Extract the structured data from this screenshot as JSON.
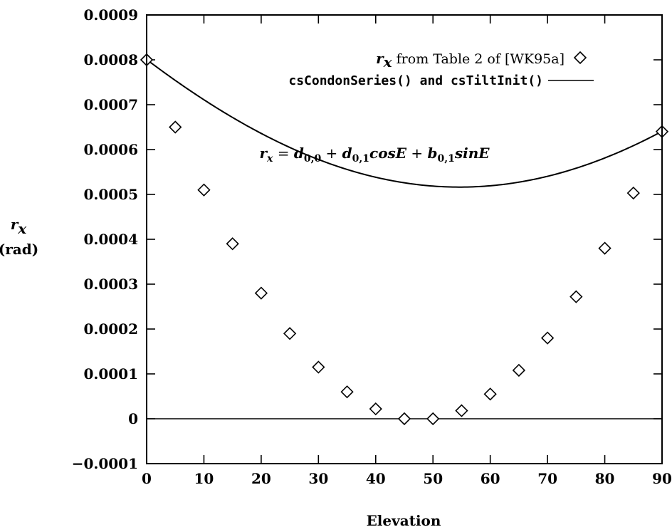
{
  "chart_data": {
    "type": "scatter",
    "xlabel": "Elevation",
    "ylabel_symbol": "r",
    "ylabel_subscript": "x",
    "ylabel_unit": "(rad)",
    "xlim": [
      0,
      90
    ],
    "ylim": [
      -0.0001,
      0.0009
    ],
    "x_ticks": [
      0,
      10,
      20,
      30,
      40,
      50,
      60,
      70,
      80,
      90
    ],
    "x_tick_labels": [
      "0",
      "10",
      "20",
      "30",
      "40",
      "50",
      "60",
      "70",
      "80",
      "90"
    ],
    "y_ticks": [
      -0.0001,
      0,
      0.0001,
      0.0002,
      0.0003,
      0.0004,
      0.0005,
      0.0006,
      0.0007,
      0.0008,
      0.0009
    ],
    "y_tick_labels": [
      "−0.0001",
      "0",
      "0.0001",
      "0.0002",
      "0.0003",
      "0.0004",
      "0.0005",
      "0.0006",
      "0.0007",
      "0.0008",
      "0.0009"
    ],
    "grid": false,
    "zero_line": true,
    "legend_position": "top-right",
    "series": [
      {
        "name_symbol": "r",
        "name_subscript": "x",
        "name_text": " from Table 2 of [WK95a]",
        "marker": "diamond",
        "x": [
          0,
          5,
          10,
          15,
          20,
          25,
          30,
          35,
          40,
          45,
          50,
          55,
          60,
          65,
          70,
          75,
          80,
          85,
          90
        ],
        "y": [
          0.0008,
          0.00065,
          0.00051,
          0.00039,
          0.00028,
          0.00019,
          0.000115,
          6e-05,
          2.2e-05,
          0.0,
          0.0,
          1.8e-05,
          5.5e-05,
          0.000108,
          0.00018,
          0.000272,
          0.00038,
          0.000503,
          0.00064
        ]
      },
      {
        "name": "csCondonSeries() and csTiltInit()",
        "line": "solid",
        "curve": {
          "d00": 0.0011906,
          "d01": -0.00039,
          "b01": -0.00055
        }
      }
    ],
    "annotation": {
      "lhs_symbol": "r",
      "lhs_subscript": "x",
      "t1": "d",
      "t1_sub": "0,0",
      "t2": "d",
      "t2_sub": "0,1",
      "t2_tail": "cosE",
      "t3": "b",
      "t3_sub": "0,1",
      "t3_tail": "sinE"
    }
  }
}
